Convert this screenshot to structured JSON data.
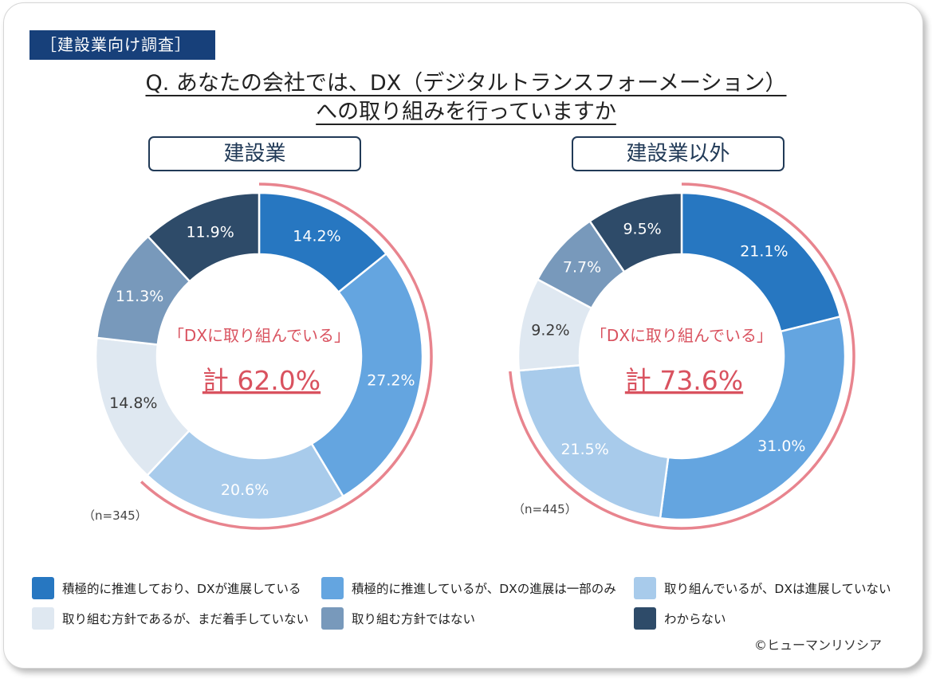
{
  "tag": "［建設業向け調査］",
  "question": {
    "line1": "Q. あなたの会社では、DX（デジタルトランスフォーメーション）",
    "line2": "への取り組みを行っていますか"
  },
  "legend": [
    {
      "label": "積極的に推進しており、DXが進展している",
      "color": "#2777c1"
    },
    {
      "label": "積極的に推進しているが、DXの進展は一部のみ",
      "color": "#64a5e0"
    },
    {
      "label": "取り組んでいるが、DXは進展していない",
      "color": "#a8cbeb"
    },
    {
      "label": "取り組む方針であるが、まだ着手していない",
      "color": "#dfe8f1"
    },
    {
      "label": "取り組む方針ではない",
      "color": "#7899bb"
    },
    {
      "label": "わからない",
      "color": "#2e4b69"
    }
  ],
  "chart_data": [
    {
      "type": "pie",
      "title": "建設業",
      "n_label": "（n=345）",
      "categories": [
        "積極的に推進しており、DXが進展している",
        "積極的に推進しているが、DXの進展は一部のみ",
        "取り組んでいるが、DXは進展していない",
        "取り組む方針であるが、まだ着手していない",
        "取り組む方針ではない",
        "わからない"
      ],
      "values": [
        14.2,
        27.2,
        20.6,
        14.8,
        11.3,
        11.9
      ],
      "value_labels": [
        "14.2%",
        "27.2%",
        "20.6%",
        "14.8%",
        "11.3%",
        "11.9%"
      ],
      "center_label": "「DXに取り組んでいる」",
      "center_total": "計  62.0%",
      "highlight_total": 62.0
    },
    {
      "type": "pie",
      "title": "建設業以外",
      "n_label": "（n=445）",
      "categories": [
        "積極的に推進しており、DXが進展している",
        "積極的に推進しているが、DXの進展は一部のみ",
        "取り組んでいるが、DXは進展していない",
        "取り組む方針であるが、まだ着手していない",
        "取り組む方針ではない",
        "わからない"
      ],
      "values": [
        21.1,
        31.0,
        21.5,
        9.2,
        7.7,
        9.5
      ],
      "value_labels": [
        "21.1%",
        "31.0%",
        "21.5%",
        "9.2%",
        "7.7%",
        "9.5%"
      ],
      "center_label": "「DXに取り組んでいる」",
      "center_total": "計  73.6%",
      "highlight_total": 73.6
    }
  ],
  "colors": {
    "arc_highlight": "#e8848e",
    "center_text": "#d9525f",
    "label_dark": "#ffffff",
    "label_light": "#3a3a3a"
  },
  "copyright": "©ヒューマンリソシア"
}
